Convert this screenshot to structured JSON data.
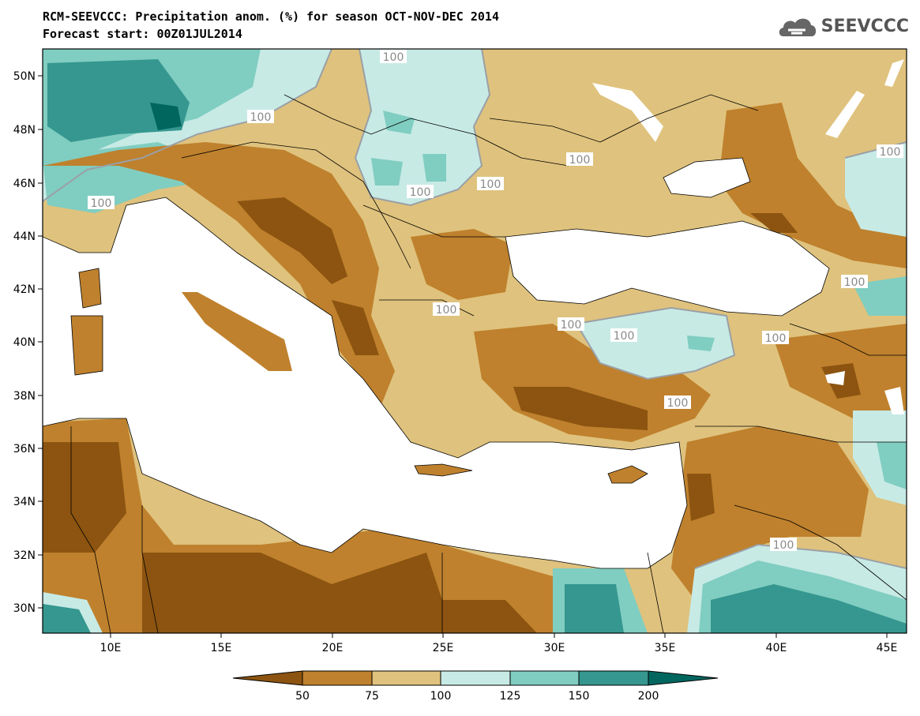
{
  "title": {
    "line1": "RCM-SEEVCCC: Precipitation anom. (%) for season OCT-NOV-DEC 2014",
    "line2": "Forecast start: 00Z01JUL2014"
  },
  "logo": {
    "text": "SEEVCCC",
    "icon": "cloud-icon"
  },
  "axes": {
    "lat_labels": [
      "50N",
      "48N",
      "46N",
      "44N",
      "42N",
      "40N",
      "38N",
      "36N",
      "34N",
      "32N",
      "30N"
    ],
    "lon_labels": [
      "10E",
      "15E",
      "20E",
      "25E",
      "30E",
      "35E",
      "40E",
      "45E"
    ]
  },
  "contour_labels": [
    "100",
    "100",
    "100",
    "100",
    "100",
    "100",
    "100",
    "100",
    "100",
    "100",
    "100",
    "100",
    "100",
    "100"
  ],
  "colorbar": {
    "labels": [
      "50",
      "75",
      "100",
      "125",
      "150",
      "200"
    ],
    "colors": [
      "#8c5410",
      "#bf812d",
      "#dfc27d",
      "#c7eae5",
      "#80cdc1",
      "#35978f",
      "#01665e"
    ]
  },
  "palette": {
    "lt50": "#8c5410",
    "b50_75": "#bf812d",
    "b75_100": "#dfc27d",
    "b100_125": "#c7eae5",
    "b125_150": "#80cdc1",
    "b150_200": "#35978f",
    "gt200": "#01665e",
    "sea": "#ffffff",
    "border": "#000000",
    "contour": "#9aa0a6"
  }
}
